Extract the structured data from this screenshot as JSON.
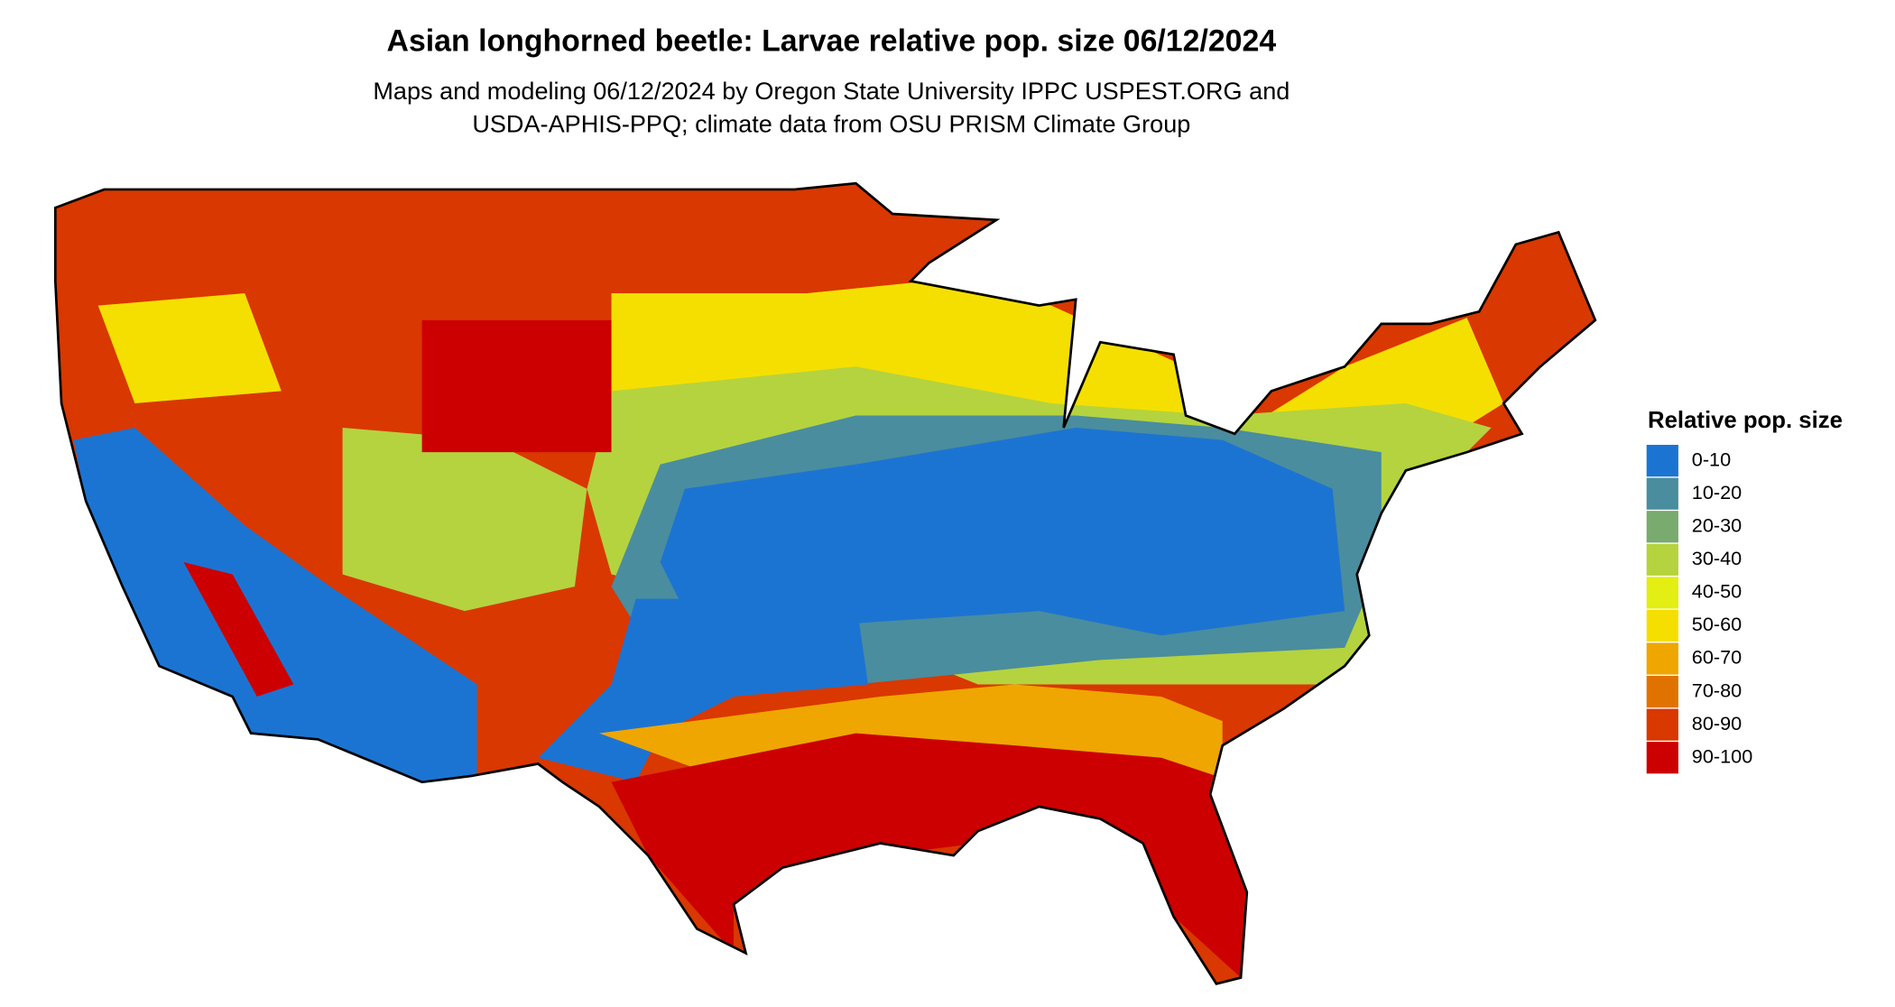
{
  "title": "Asian longhorned beetle: Larvae relative pop. size 06/12/2024",
  "subtitle": [
    "Maps and modeling 06/12/2024 by Oregon State University IPPC USPEST.ORG and",
    "USDA-APHIS-PPQ; climate data from OSU PRISM Climate Group"
  ],
  "legend": {
    "title": "Relative pop. size",
    "items": [
      {
        "label": "0-10",
        "color": "#1c74d2"
      },
      {
        "label": "10-20",
        "color": "#4a8d9e"
      },
      {
        "label": "20-30",
        "color": "#79aa6e"
      },
      {
        "label": "30-40",
        "color": "#b5d33e"
      },
      {
        "label": "40-50",
        "color": "#e3ee12"
      },
      {
        "label": "50-60",
        "color": "#f5df00"
      },
      {
        "label": "60-70",
        "color": "#efa600"
      },
      {
        "label": "70-80",
        "color": "#e07300"
      },
      {
        "label": "80-90",
        "color": "#d93800"
      },
      {
        "label": "90-100",
        "color": "#cc0000"
      }
    ]
  }
}
